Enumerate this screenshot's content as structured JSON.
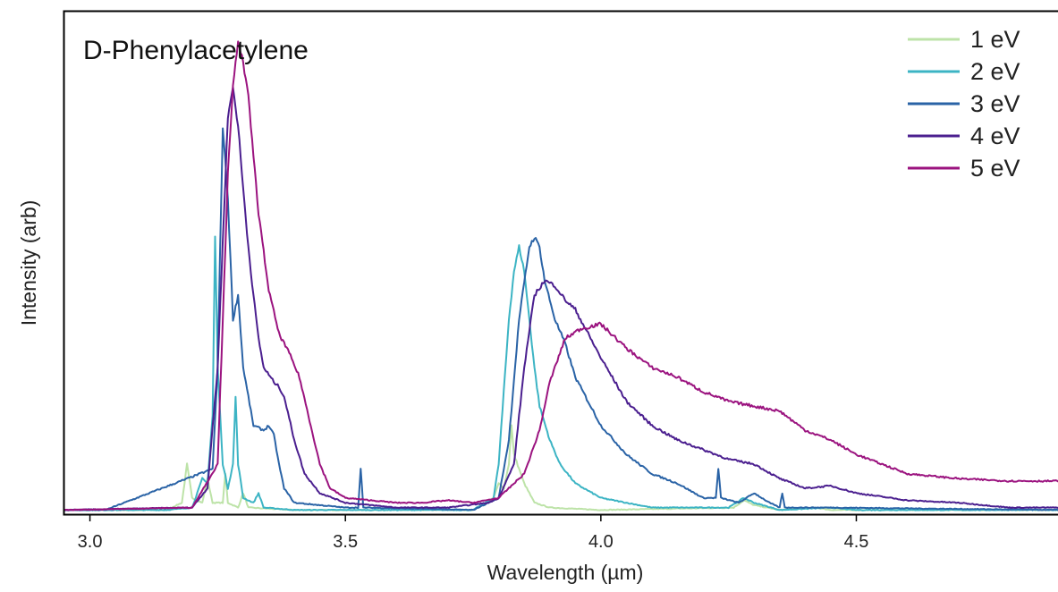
{
  "chart_data": {
    "type": "line",
    "title": "D-Phenylacetylene",
    "xlabel": "Wavelength (µm)",
    "ylabel": "Intensity (arb)",
    "xlim": [
      2.95,
      4.9
    ],
    "ylim": [
      0,
      1.0
    ],
    "xticks": [
      3.0,
      3.5,
      4.0,
      4.5
    ],
    "xtick_labels": [
      "3.0",
      "3.5",
      "4.0",
      "4.5"
    ],
    "grid": false,
    "legend_position": "top-right",
    "series": [
      {
        "name": "1 eV",
        "color": "#bde3a8",
        "points": [
          [
            2.95,
            0.005
          ],
          [
            3.15,
            0.005
          ],
          [
            3.18,
            0.02
          ],
          [
            3.19,
            0.1
          ],
          [
            3.2,
            0.03
          ],
          [
            3.22,
            0.02
          ],
          [
            3.23,
            0.07
          ],
          [
            3.24,
            0.02
          ],
          [
            3.26,
            0.02
          ],
          [
            3.265,
            0.08
          ],
          [
            3.27,
            0.02
          ],
          [
            3.29,
            0.01
          ],
          [
            3.3,
            0.04
          ],
          [
            3.31,
            0.01
          ],
          [
            3.4,
            0.005
          ],
          [
            3.75,
            0.005
          ],
          [
            3.79,
            0.03
          ],
          [
            3.8,
            0.06
          ],
          [
            3.81,
            0.05
          ],
          [
            3.82,
            0.1
          ],
          [
            3.825,
            0.18
          ],
          [
            3.83,
            0.12
          ],
          [
            3.84,
            0.09
          ],
          [
            3.85,
            0.06
          ],
          [
            3.87,
            0.02
          ],
          [
            3.9,
            0.01
          ],
          [
            4.0,
            0.005
          ],
          [
            4.26,
            0.01
          ],
          [
            4.28,
            0.025
          ],
          [
            4.3,
            0.015
          ],
          [
            4.35,
            0.005
          ],
          [
            4.42,
            0.01
          ],
          [
            4.45,
            0.005
          ],
          [
            4.9,
            0.005
          ]
        ]
      },
      {
        "name": "2 eV",
        "color": "#3cb4c4",
        "points": [
          [
            2.95,
            0.005
          ],
          [
            3.15,
            0.005
          ],
          [
            3.2,
            0.01
          ],
          [
            3.22,
            0.07
          ],
          [
            3.23,
            0.06
          ],
          [
            3.24,
            0.2
          ],
          [
            3.245,
            0.57
          ],
          [
            3.25,
            0.3
          ],
          [
            3.26,
            0.1
          ],
          [
            3.27,
            0.05
          ],
          [
            3.28,
            0.1
          ],
          [
            3.285,
            0.24
          ],
          [
            3.29,
            0.1
          ],
          [
            3.3,
            0.03
          ],
          [
            3.32,
            0.02
          ],
          [
            3.33,
            0.04
          ],
          [
            3.34,
            0.01
          ],
          [
            3.4,
            0.005
          ],
          [
            3.75,
            0.005
          ],
          [
            3.79,
            0.03
          ],
          [
            3.8,
            0.1
          ],
          [
            3.81,
            0.25
          ],
          [
            3.82,
            0.4
          ],
          [
            3.83,
            0.5
          ],
          [
            3.84,
            0.55
          ],
          [
            3.85,
            0.5
          ],
          [
            3.86,
            0.4
          ],
          [
            3.87,
            0.3
          ],
          [
            3.88,
            0.22
          ],
          [
            3.9,
            0.15
          ],
          [
            3.92,
            0.1
          ],
          [
            3.95,
            0.06
          ],
          [
            4.0,
            0.03
          ],
          [
            4.1,
            0.01
          ],
          [
            4.25,
            0.01
          ],
          [
            4.28,
            0.03
          ],
          [
            4.3,
            0.02
          ],
          [
            4.35,
            0.005
          ],
          [
            4.45,
            0.01
          ],
          [
            4.5,
            0.005
          ],
          [
            4.9,
            0.005
          ]
        ]
      },
      {
        "name": "3 eV",
        "color": "#2a63a6",
        "points": [
          [
            2.95,
            0.005
          ],
          [
            3.03,
            0.005
          ],
          [
            3.24,
            0.09
          ],
          [
            3.25,
            0.3
          ],
          [
            3.26,
            0.8
          ],
          [
            3.27,
            0.65
          ],
          [
            3.28,
            0.4
          ],
          [
            3.29,
            0.45
          ],
          [
            3.3,
            0.3
          ],
          [
            3.32,
            0.18
          ],
          [
            3.34,
            0.17
          ],
          [
            3.35,
            0.18
          ],
          [
            3.36,
            0.16
          ],
          [
            3.37,
            0.1
          ],
          [
            3.38,
            0.05
          ],
          [
            3.4,
            0.02
          ],
          [
            3.5,
            0.01
          ],
          [
            3.525,
            0.01
          ],
          [
            3.53,
            0.09
          ],
          [
            3.535,
            0.01
          ],
          [
            3.75,
            0.005
          ],
          [
            3.8,
            0.03
          ],
          [
            3.82,
            0.15
          ],
          [
            3.84,
            0.4
          ],
          [
            3.86,
            0.55
          ],
          [
            3.87,
            0.57
          ],
          [
            3.88,
            0.55
          ],
          [
            3.89,
            0.48
          ],
          [
            3.91,
            0.4
          ],
          [
            3.93,
            0.35
          ],
          [
            3.95,
            0.28
          ],
          [
            3.97,
            0.24
          ],
          [
            4.0,
            0.18
          ],
          [
            4.05,
            0.12
          ],
          [
            4.1,
            0.08
          ],
          [
            4.15,
            0.06
          ],
          [
            4.2,
            0.03
          ],
          [
            4.225,
            0.03
          ],
          [
            4.23,
            0.09
          ],
          [
            4.235,
            0.03
          ],
          [
            4.27,
            0.02
          ],
          [
            4.3,
            0.04
          ],
          [
            4.33,
            0.02
          ],
          [
            4.35,
            0.01
          ],
          [
            4.355,
            0.04
          ],
          [
            4.36,
            0.01
          ],
          [
            4.45,
            0.01
          ],
          [
            4.9,
            0.005
          ]
        ]
      },
      {
        "name": "4 eV",
        "color": "#4b1f8f",
        "points": [
          [
            2.95,
            0.005
          ],
          [
            3.2,
            0.01
          ],
          [
            3.23,
            0.05
          ],
          [
            3.25,
            0.3
          ],
          [
            3.27,
            0.82
          ],
          [
            3.28,
            0.88
          ],
          [
            3.29,
            0.8
          ],
          [
            3.3,
            0.67
          ],
          [
            3.31,
            0.55
          ],
          [
            3.32,
            0.45
          ],
          [
            3.33,
            0.36
          ],
          [
            3.34,
            0.3
          ],
          [
            3.36,
            0.27
          ],
          [
            3.37,
            0.26
          ],
          [
            3.38,
            0.24
          ],
          [
            3.4,
            0.15
          ],
          [
            3.42,
            0.08
          ],
          [
            3.45,
            0.04
          ],
          [
            3.5,
            0.02
          ],
          [
            3.6,
            0.01
          ],
          [
            3.7,
            0.01
          ],
          [
            3.78,
            0.02
          ],
          [
            3.8,
            0.03
          ],
          [
            3.83,
            0.1
          ],
          [
            3.85,
            0.3
          ],
          [
            3.87,
            0.45
          ],
          [
            3.89,
            0.48
          ],
          [
            3.91,
            0.47
          ],
          [
            3.93,
            0.44
          ],
          [
            3.95,
            0.42
          ],
          [
            3.97,
            0.38
          ],
          [
            4.0,
            0.32
          ],
          [
            4.05,
            0.23
          ],
          [
            4.1,
            0.18
          ],
          [
            4.15,
            0.15
          ],
          [
            4.2,
            0.13
          ],
          [
            4.25,
            0.11
          ],
          [
            4.3,
            0.1
          ],
          [
            4.35,
            0.07
          ],
          [
            4.4,
            0.05
          ],
          [
            4.45,
            0.055
          ],
          [
            4.5,
            0.04
          ],
          [
            4.6,
            0.025
          ],
          [
            4.7,
            0.02
          ],
          [
            4.8,
            0.01
          ],
          [
            4.9,
            0.01
          ]
        ]
      },
      {
        "name": "5 eV",
        "color": "#9b137f",
        "points": [
          [
            2.95,
            0.005
          ],
          [
            3.2,
            0.01
          ],
          [
            3.25,
            0.1
          ],
          [
            3.27,
            0.7
          ],
          [
            3.28,
            0.88
          ],
          [
            3.29,
            0.98
          ],
          [
            3.3,
            0.93
          ],
          [
            3.31,
            0.86
          ],
          [
            3.32,
            0.74
          ],
          [
            3.33,
            0.62
          ],
          [
            3.35,
            0.46
          ],
          [
            3.37,
            0.37
          ],
          [
            3.39,
            0.33
          ],
          [
            3.41,
            0.28
          ],
          [
            3.43,
            0.19
          ],
          [
            3.45,
            0.1
          ],
          [
            3.47,
            0.05
          ],
          [
            3.5,
            0.03
          ],
          [
            3.6,
            0.02
          ],
          [
            3.65,
            0.02
          ],
          [
            3.7,
            0.025
          ],
          [
            3.75,
            0.02
          ],
          [
            3.8,
            0.03
          ],
          [
            3.85,
            0.08
          ],
          [
            3.88,
            0.17
          ],
          [
            3.9,
            0.27
          ],
          [
            3.93,
            0.36
          ],
          [
            3.96,
            0.38
          ],
          [
            4.0,
            0.39
          ],
          [
            4.02,
            0.37
          ],
          [
            4.05,
            0.34
          ],
          [
            4.1,
            0.3
          ],
          [
            4.15,
            0.28
          ],
          [
            4.2,
            0.25
          ],
          [
            4.25,
            0.23
          ],
          [
            4.3,
            0.22
          ],
          [
            4.35,
            0.21
          ],
          [
            4.4,
            0.17
          ],
          [
            4.45,
            0.15
          ],
          [
            4.5,
            0.12
          ],
          [
            4.55,
            0.1
          ],
          [
            4.6,
            0.08
          ],
          [
            4.7,
            0.07
          ],
          [
            4.8,
            0.065
          ],
          [
            4.9,
            0.065
          ]
        ]
      }
    ]
  }
}
